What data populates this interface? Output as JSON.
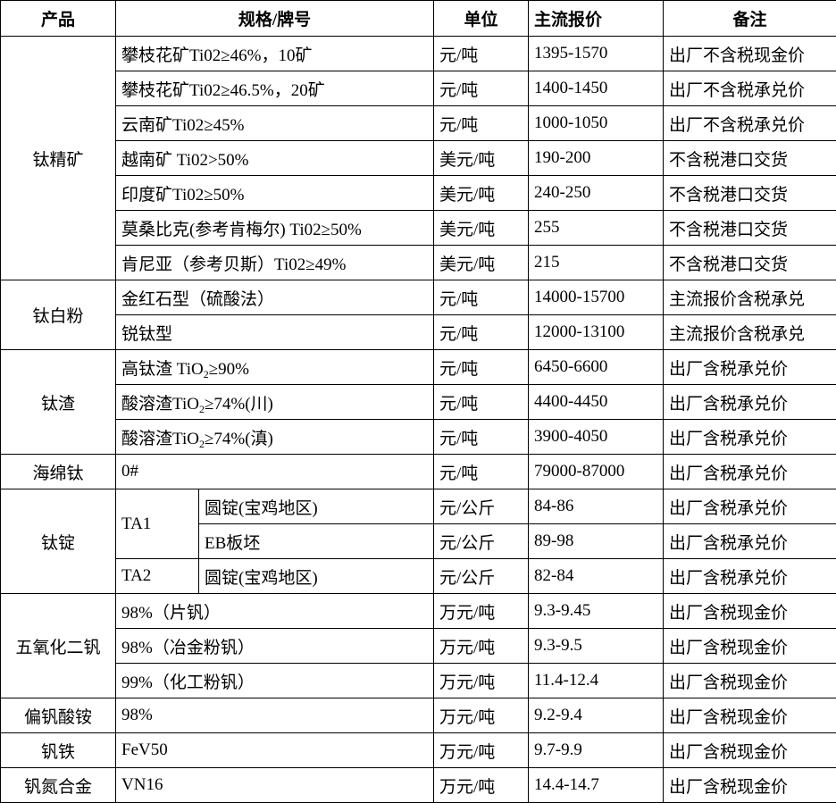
{
  "headers": {
    "product": "产品",
    "spec": "规格/牌号",
    "unit": "单位",
    "price": "主流报价",
    "note": "备注"
  },
  "groups": [
    {
      "product": "钛精矿",
      "rows": [
        {
          "spec": "攀枝花矿Ti02≥46%，10矿",
          "unit": "元/吨",
          "price": "1395-1570",
          "note": "出厂不含税现金价"
        },
        {
          "spec": "攀枝花矿Ti02≥46.5%，20矿",
          "unit": "元/吨",
          "price": "1400-1450",
          "note": "出厂不含税承兑价"
        },
        {
          "spec": "云南矿Ti02≥45%",
          "unit": "元/吨",
          "price": "1000-1050",
          "note": "出厂不含税承兑价"
        },
        {
          "spec": "越南矿 Ti02>50%",
          "unit": "美元/吨",
          "price": "190-200",
          "note": "不含税港口交货"
        },
        {
          "spec": "印度矿Ti02≥50%",
          "unit": "美元/吨",
          "price": "240-250",
          "note": "不含税港口交货"
        },
        {
          "spec": "莫桑比克(参考肯梅尔) Ti02≥50%",
          "unit": "美元/吨",
          "price": "255",
          "note": "不含税港口交货"
        },
        {
          "spec": "肯尼亚（参考贝斯）Ti02≥49%",
          "unit": "美元/吨",
          "price": "215",
          "note": "不含税港口交货"
        }
      ]
    },
    {
      "product": "钛白粉",
      "rows": [
        {
          "spec": "金红石型（硫酸法）",
          "unit": "元/吨",
          "price": "14000-15700",
          "note": "主流报价含税承兑"
        },
        {
          "spec": "锐钛型",
          "unit": "元/吨",
          "price": "12000-13100",
          "note": "主流报价含税承兑"
        }
      ]
    },
    {
      "product": "钛渣",
      "rows": [
        {
          "spec": "高钛渣 TiO",
          "spec_sub": "2",
          "spec_tail": "≥90%",
          "unit": "元/吨",
          "price": "6450-6600",
          "note": "出厂含税承兑价"
        },
        {
          "spec": "酸溶渣TiO",
          "spec_sub": "2",
          "spec_tail": "≥74%(川)",
          "unit": "元/吨",
          "price": "4400-4450",
          "note": "出厂含税承兑价"
        },
        {
          "spec": "酸溶渣TiO",
          "spec_sub": "2",
          "spec_tail": "≥74%(滇)",
          "unit": "元/吨",
          "price": "3900-4050",
          "note": "出厂含税承兑价"
        }
      ]
    },
    {
      "product": "海绵钛",
      "rows": [
        {
          "spec": "0#",
          "unit": "元/吨",
          "price": "79000-87000",
          "note": "出厂含税承兑价"
        }
      ]
    },
    {
      "product": "钛锭",
      "rows": [
        {
          "grade": "TA1",
          "grade_span": 2,
          "spec": "圆锭(宝鸡地区)",
          "unit": "元/公斤",
          "price": "84-86",
          "note": "出厂含税承兑价"
        },
        {
          "spec": "EB板坯",
          "unit": "元/公斤",
          "price": "89-98",
          "note": "出厂含税承兑价"
        },
        {
          "grade": "TA2",
          "grade_span": 1,
          "spec": "圆锭(宝鸡地区)",
          "unit": "元/公斤",
          "price": "82-84",
          "note": "出厂含税承兑价"
        }
      ]
    },
    {
      "product": "五氧化二钒",
      "rows": [
        {
          "spec": "98%（片钒）",
          "unit": "万元/吨",
          "price": "9.3-9.45",
          "note": "出厂含税现金价"
        },
        {
          "spec": "98%（冶金粉钒）",
          "unit": "万元/吨",
          "price": "9.3-9.5",
          "note": "出厂含税现金价"
        },
        {
          "spec": "99%（化工粉钒）",
          "unit": "万元/吨",
          "price": "11.4-12.4",
          "note": "出厂含税现金价"
        }
      ]
    },
    {
      "product": "偏钒酸铵",
      "rows": [
        {
          "spec": "98%",
          "unit": "万元/吨",
          "price": "9.2-9.4",
          "note": "出厂含税现金价"
        }
      ]
    },
    {
      "product": "钒铁",
      "rows": [
        {
          "spec": "FeV50",
          "unit": "万元/吨",
          "price": "9.7-9.9",
          "note": "出厂含税现金价"
        }
      ]
    },
    {
      "product": "钒氮合金",
      "rows": [
        {
          "spec": "VN16",
          "unit": "万元/吨",
          "price": "14.4-14.7",
          "note": "出厂含税现金价"
        }
      ]
    }
  ]
}
